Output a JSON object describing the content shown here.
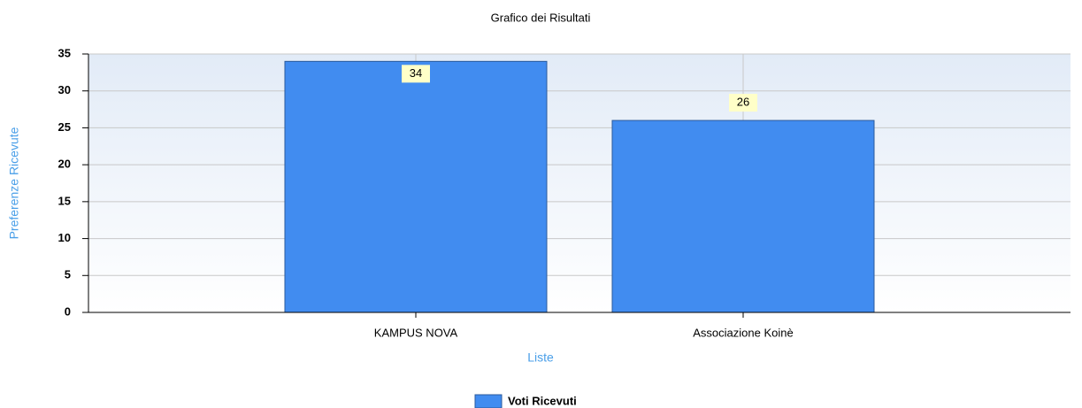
{
  "chart_data": {
    "type": "bar",
    "title": "Grafico dei Risultati",
    "x_label": "Liste",
    "y_label": "Preferenze Ricevute",
    "categories": [
      "KAMPUS NOVA",
      "Associazione Koinè"
    ],
    "series": [
      {
        "name": "Voti Ricevuti",
        "color": "#418cf0",
        "values": [
          34,
          26
        ]
      }
    ],
    "ylim": [
      0,
      35
    ],
    "yticks": [
      0,
      5,
      10,
      15,
      20,
      25,
      30,
      35
    ],
    "grid": true,
    "legend": "bottom"
  }
}
